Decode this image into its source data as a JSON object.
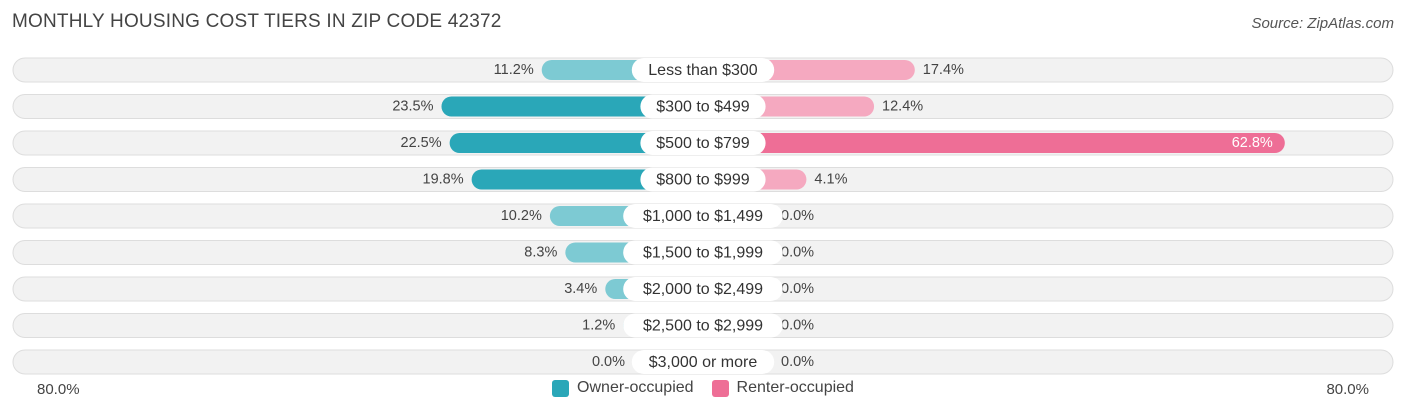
{
  "title": "MONTHLY HOUSING COST TIERS IN ZIP CODE 42372",
  "source": "Source: ZipAtlas.com",
  "axis": {
    "left_label": "80.0%",
    "right_label": "80.0%"
  },
  "legend": {
    "owner": "Owner-occupied",
    "renter": "Renter-occupied"
  },
  "colors": {
    "owner_strong": "#2AA7B8",
    "owner_light": "#7DCAD3",
    "renter_strong": "#EE6E96",
    "renter_light": "#F5A9C0",
    "row_bg": "#F2F2F2",
    "row_border": "#DDDDDD"
  },
  "chart_data": {
    "type": "bar",
    "orientation": "diverging-horizontal",
    "title": "MONTHLY HOUSING COST TIERS IN ZIP CODE 42372",
    "xlim": [
      -80,
      80
    ],
    "categories": [
      "Less than $300",
      "$300 to $499",
      "$500 to $799",
      "$800 to $999",
      "$1,000 to $1,499",
      "$1,500 to $1,999",
      "$2,000 to $2,499",
      "$2,500 to $2,999",
      "$3,000 or more"
    ],
    "series": [
      {
        "name": "Owner-occupied",
        "values": [
          11.2,
          23.5,
          22.5,
          19.8,
          10.2,
          8.3,
          3.4,
          1.2,
          0.0
        ],
        "labels": [
          "11.2%",
          "23.5%",
          "22.5%",
          "19.8%",
          "10.2%",
          "8.3%",
          "3.4%",
          "1.2%",
          "0.0%"
        ]
      },
      {
        "name": "Renter-occupied",
        "values": [
          17.4,
          12.4,
          62.8,
          4.1,
          0.0,
          0.0,
          0.0,
          0.0,
          0.0
        ],
        "labels": [
          "17.4%",
          "12.4%",
          "62.8%",
          "4.1%",
          "0.0%",
          "0.0%",
          "0.0%",
          "0.0%",
          "0.0%"
        ]
      }
    ],
    "legend_position": "bottom-center"
  }
}
